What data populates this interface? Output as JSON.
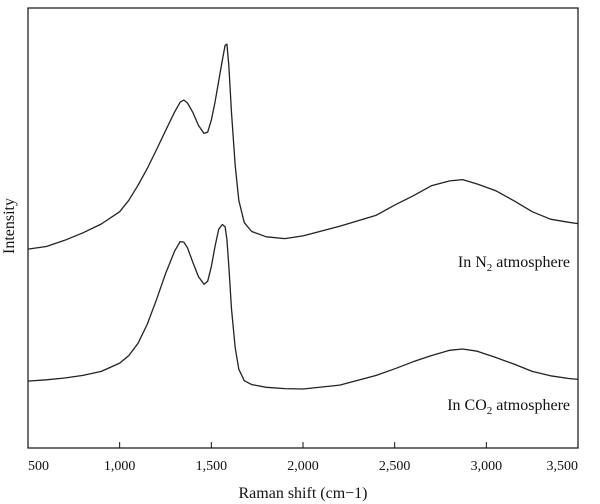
{
  "chart_data": {
    "type": "line",
    "title": "",
    "xlabel": "Raman shift (cm−1)",
    "ylabel": "Intensity",
    "xlim": [
      500,
      3500
    ],
    "ylim": [
      0,
      100
    ],
    "x_ticks": [
      500,
      1000,
      1500,
      2000,
      2500,
      3000,
      3500
    ],
    "x_tick_labels": [
      "500",
      "1,000",
      "1,500",
      "2,000",
      "2,500",
      "3,000",
      "3,500"
    ],
    "grid": false,
    "y_tick_labels_shown": false,
    "series": [
      {
        "annotation": {
          "prefix": "In N",
          "subscript": "2",
          "suffix": " atmosphere"
        },
        "color": "#222222",
        "x": [
          500,
          600,
          700,
          800,
          900,
          1000,
          1050,
          1100,
          1150,
          1200,
          1250,
          1300,
          1330,
          1350,
          1370,
          1400,
          1430,
          1460,
          1480,
          1500,
          1520,
          1540,
          1560,
          1575,
          1585,
          1595,
          1610,
          1630,
          1650,
          1680,
          1720,
          1800,
          1900,
          2000,
          2200,
          2400,
          2500,
          2600,
          2700,
          2800,
          2870,
          2950,
          3050,
          3150,
          3250,
          3350,
          3450,
          3500
        ],
        "y": [
          45.2,
          45.8,
          47.2,
          48.9,
          50.9,
          53.7,
          56.3,
          59.7,
          63.5,
          67.7,
          72.1,
          76.4,
          78.6,
          79.1,
          78.4,
          76.2,
          73.3,
          71.5,
          71.8,
          74.5,
          78.6,
          83.4,
          88.1,
          91.5,
          91.8,
          87.0,
          76.2,
          64.2,
          56.3,
          51.2,
          49.2,
          48.0,
          47.6,
          48.2,
          50.4,
          52.9,
          55.2,
          57.3,
          59.6,
          60.7,
          61.0,
          60.0,
          58.5,
          56.2,
          53.7,
          52.0,
          51.3,
          51.0
        ]
      },
      {
        "annotation": {
          "prefix": "In CO",
          "subscript": "2",
          "suffix": " atmosphere"
        },
        "color": "#222222",
        "x": [
          500,
          600,
          700,
          800,
          900,
          1000,
          1050,
          1100,
          1150,
          1200,
          1250,
          1300,
          1330,
          1350,
          1370,
          1400,
          1430,
          1460,
          1480,
          1500,
          1520,
          1540,
          1560,
          1575,
          1585,
          1595,
          1610,
          1630,
          1650,
          1680,
          1720,
          1800,
          1900,
          2000,
          2200,
          2400,
          2500,
          2600,
          2700,
          2800,
          2870,
          2950,
          3050,
          3150,
          3250,
          3350,
          3450,
          3500
        ],
        "y": [
          15.2,
          15.5,
          15.9,
          16.5,
          17.4,
          19.3,
          21.0,
          23.8,
          28.1,
          33.6,
          39.6,
          44.8,
          46.9,
          46.8,
          45.5,
          42.1,
          38.9,
          37.2,
          37.9,
          41.2,
          45.8,
          49.7,
          50.8,
          50.3,
          47.4,
          41.4,
          31.6,
          22.8,
          17.9,
          15.3,
          14.4,
          13.8,
          13.5,
          13.4,
          14.3,
          16.5,
          18.0,
          19.6,
          21.0,
          22.2,
          22.5,
          22.0,
          20.6,
          19.1,
          17.4,
          16.4,
          15.8,
          15.6
        ]
      }
    ]
  }
}
